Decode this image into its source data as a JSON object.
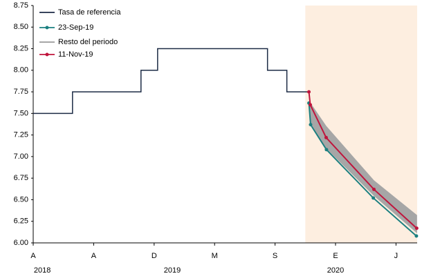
{
  "chart_data": {
    "type": "line",
    "xlim": [
      0,
      25.4
    ],
    "ylim": [
      6.0,
      8.75
    ],
    "yticks": [
      {
        "value": 6.0,
        "label": "6.00"
      },
      {
        "value": 6.25,
        "label": "6.25"
      },
      {
        "value": 6.5,
        "label": "6.50"
      },
      {
        "value": 6.75,
        "label": "6.75"
      },
      {
        "value": 7.0,
        "label": "7.00"
      },
      {
        "value": 7.25,
        "label": "7.25"
      },
      {
        "value": 7.5,
        "label": "7.50"
      },
      {
        "value": 7.75,
        "label": "7.75"
      },
      {
        "value": 8.0,
        "label": "8.00"
      },
      {
        "value": 8.25,
        "label": "8.25"
      },
      {
        "value": 8.5,
        "label": "8.50"
      },
      {
        "value": 8.75,
        "label": "8.75"
      }
    ],
    "xticks": [
      {
        "value": 0,
        "label": "A"
      },
      {
        "value": 4,
        "label": "A"
      },
      {
        "value": 8,
        "label": "D"
      },
      {
        "value": 12,
        "label": "M"
      },
      {
        "value": 16,
        "label": "S"
      },
      {
        "value": 20,
        "label": "E"
      },
      {
        "value": 24,
        "label": "J"
      }
    ],
    "year_labels": [
      {
        "value": 0.6,
        "label": "2018"
      },
      {
        "value": 9.2,
        "label": "2019"
      },
      {
        "value": 20,
        "label": "2020"
      }
    ],
    "shaded_region": {
      "x": [
        18.0,
        25.4
      ],
      "color": "#fdeee0"
    },
    "series": [
      {
        "name": "Tasa de referencia",
        "color": "#1b2a44",
        "style": "step",
        "x": [
          0,
          2.6,
          7.13,
          8.23,
          15.5,
          16.78,
          18.24
        ],
        "values": [
          7.5,
          7.75,
          8.0,
          8.25,
          8.0,
          7.75,
          7.75
        ]
      },
      {
        "name": "23-Sep-19",
        "color": "#1a7f80",
        "style": "markers",
        "x": [
          18.24,
          18.35,
          19.4,
          22.5,
          25.35
        ],
        "values": [
          7.62,
          7.37,
          7.08,
          6.52,
          6.08
        ]
      },
      {
        "name": "Resto del periodo",
        "color": "#a6a6a6",
        "style": "band",
        "x": [
          18.33,
          19.38,
          22.54,
          25.37
        ],
        "high": [
          7.62,
          7.35,
          6.72,
          6.32
        ],
        "low": [
          7.4,
          7.1,
          6.55,
          6.12
        ]
      },
      {
        "name": "11-Nov-19",
        "color": "#c0143c",
        "style": "markers",
        "x": [
          18.24,
          18.33,
          19.38,
          22.54,
          25.37
        ],
        "values": [
          7.75,
          7.6,
          7.22,
          6.62,
          6.17
        ]
      }
    ]
  }
}
